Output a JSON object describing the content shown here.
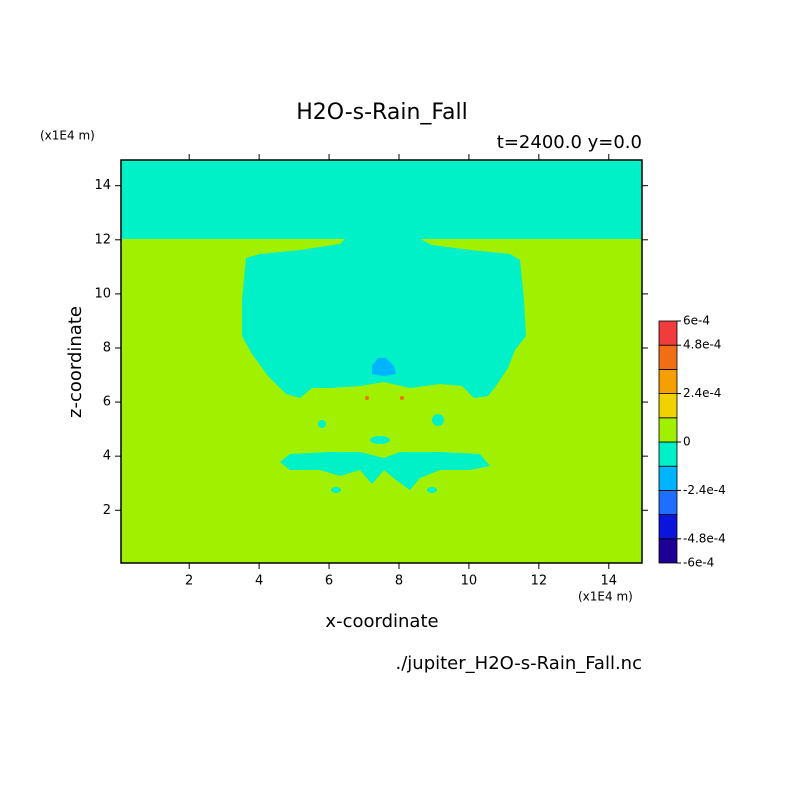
{
  "chart_data": {
    "type": "contour",
    "title": "H2O-s-Rain_Fall",
    "subtitle": "t=2400.0 y=0.0",
    "x_label": "x-coordinate",
    "y_label": "z-coordinate",
    "x_unit": "(x1E4 m)",
    "y_unit": "(x1E4 m)",
    "footnote": "./jupiter_H2O-s-Rain_Fall.nc",
    "xlim": [
      0.05,
      14.95
    ],
    "ylim": [
      0.05,
      14.95
    ],
    "xticks": [
      2,
      4,
      6,
      8,
      10,
      12,
      14
    ],
    "yticks": [
      2,
      4,
      6,
      8,
      10,
      12,
      14
    ],
    "colorbar": {
      "levels": [
        -0.0006,
        -0.00048,
        -0.00036,
        -0.00024,
        -0.00012,
        0,
        0.00012,
        0.00024,
        0.00036,
        0.00048,
        0.0006
      ],
      "colors": [
        "#1e0096",
        "#0a14dc",
        "#1e6eff",
        "#00b4ff",
        "#00f0c8",
        "#a0f000",
        "#f0d200",
        "#f5a000",
        "#f06e14",
        "#f03c3c"
      ],
      "lim": [
        -0.0006,
        0.0006
      ],
      "ticks": [
        {
          "value": -0.0006,
          "label": "-6e-4"
        },
        {
          "value": -0.00048,
          "label": "-4.8e-4"
        },
        {
          "value": -0.00024,
          "label": "-2.4e-4"
        },
        0,
        {
          "value": 0.00024,
          "label": "2.4e-4"
        },
        {
          "value": 0.00048,
          "label": "4.8e-4"
        },
        {
          "value": 0.0006,
          "label": "6e-4"
        }
      ]
    }
  }
}
